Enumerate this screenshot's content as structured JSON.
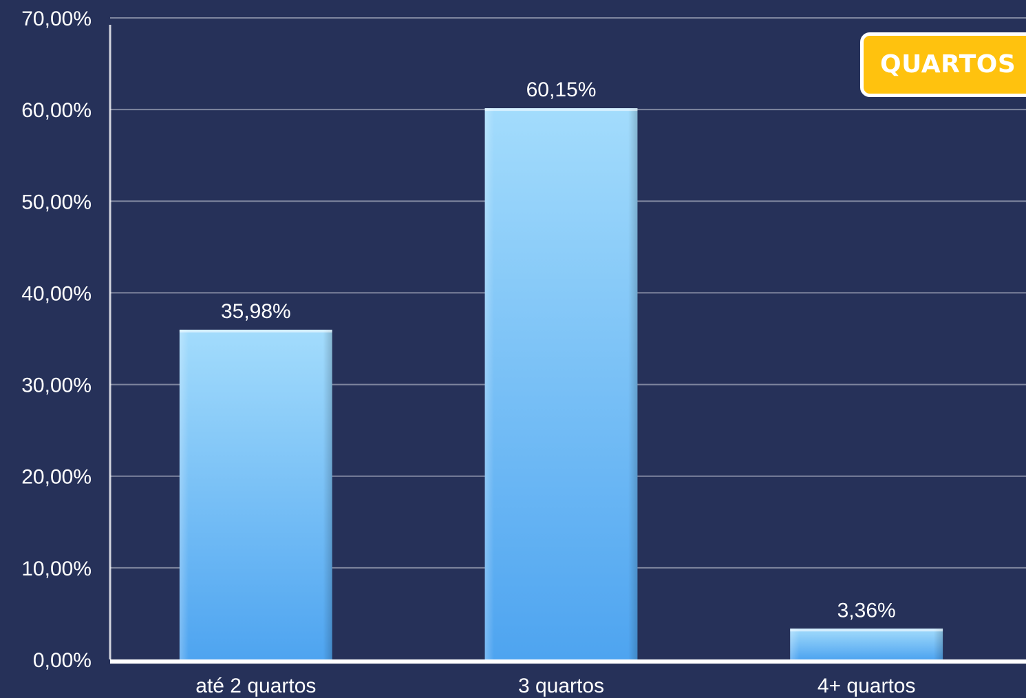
{
  "badge": {
    "label": "QUARTOS",
    "background_color": "#ffc20e",
    "text_color": "#ffffff"
  },
  "colors": {
    "background": "#263159",
    "bar_top": "#a3dcfc",
    "bar_bottom": "#4ea4f0",
    "gridline": "#7f869f",
    "axis": "#ffffff"
  },
  "chart_data": {
    "type": "bar",
    "title": "",
    "xlabel": "",
    "ylabel": "",
    "categories": [
      "até 2 quartos",
      "3 quartos",
      "4+ quartos"
    ],
    "values": [
      35.98,
      60.15,
      3.36
    ],
    "data_labels": [
      "35,98%",
      "60,15%",
      "3,36%"
    ],
    "ylim": [
      0,
      70
    ],
    "yticks": [
      0,
      10,
      20,
      30,
      40,
      50,
      60,
      70
    ],
    "ytick_labels": [
      "0,00%",
      "10,00%",
      "20,00%",
      "30,00%",
      "40,00%",
      "50,00%",
      "60,00%",
      "70,00%"
    ],
    "grid": true,
    "legend": "none"
  }
}
